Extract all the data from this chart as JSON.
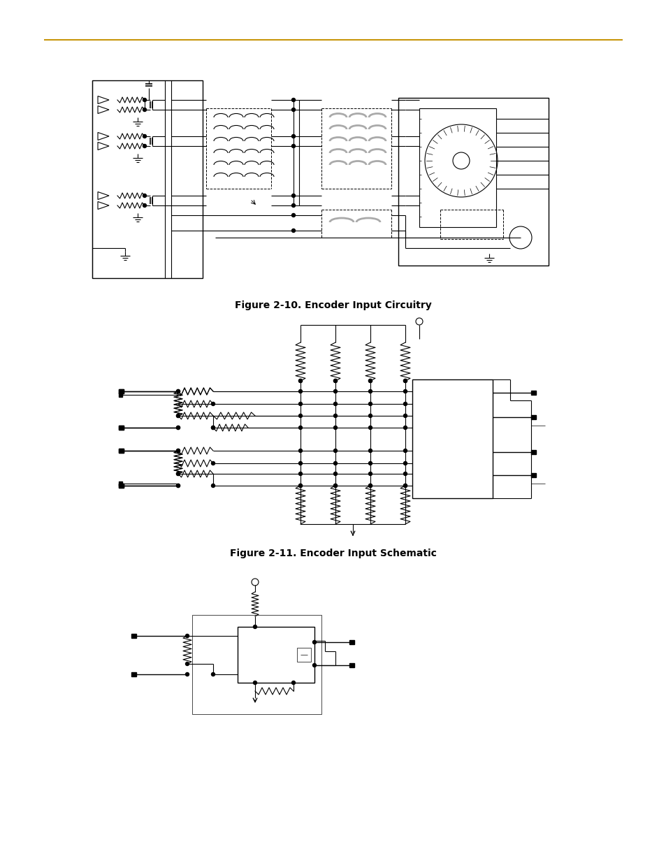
{
  "background_color": "#ffffff",
  "line_color": "#000000",
  "gray_color": "#aaaaaa",
  "header_line_color": "#c8960c",
  "fig_width": 9.54,
  "fig_height": 12.35,
  "figure_2_10_caption": "Figure 2-10. Encoder Input Circuitry",
  "figure_2_11_caption": "Figure 2-11. Encoder Input Schematic",
  "caption_fontsize": 10,
  "caption_fontweight": "bold"
}
